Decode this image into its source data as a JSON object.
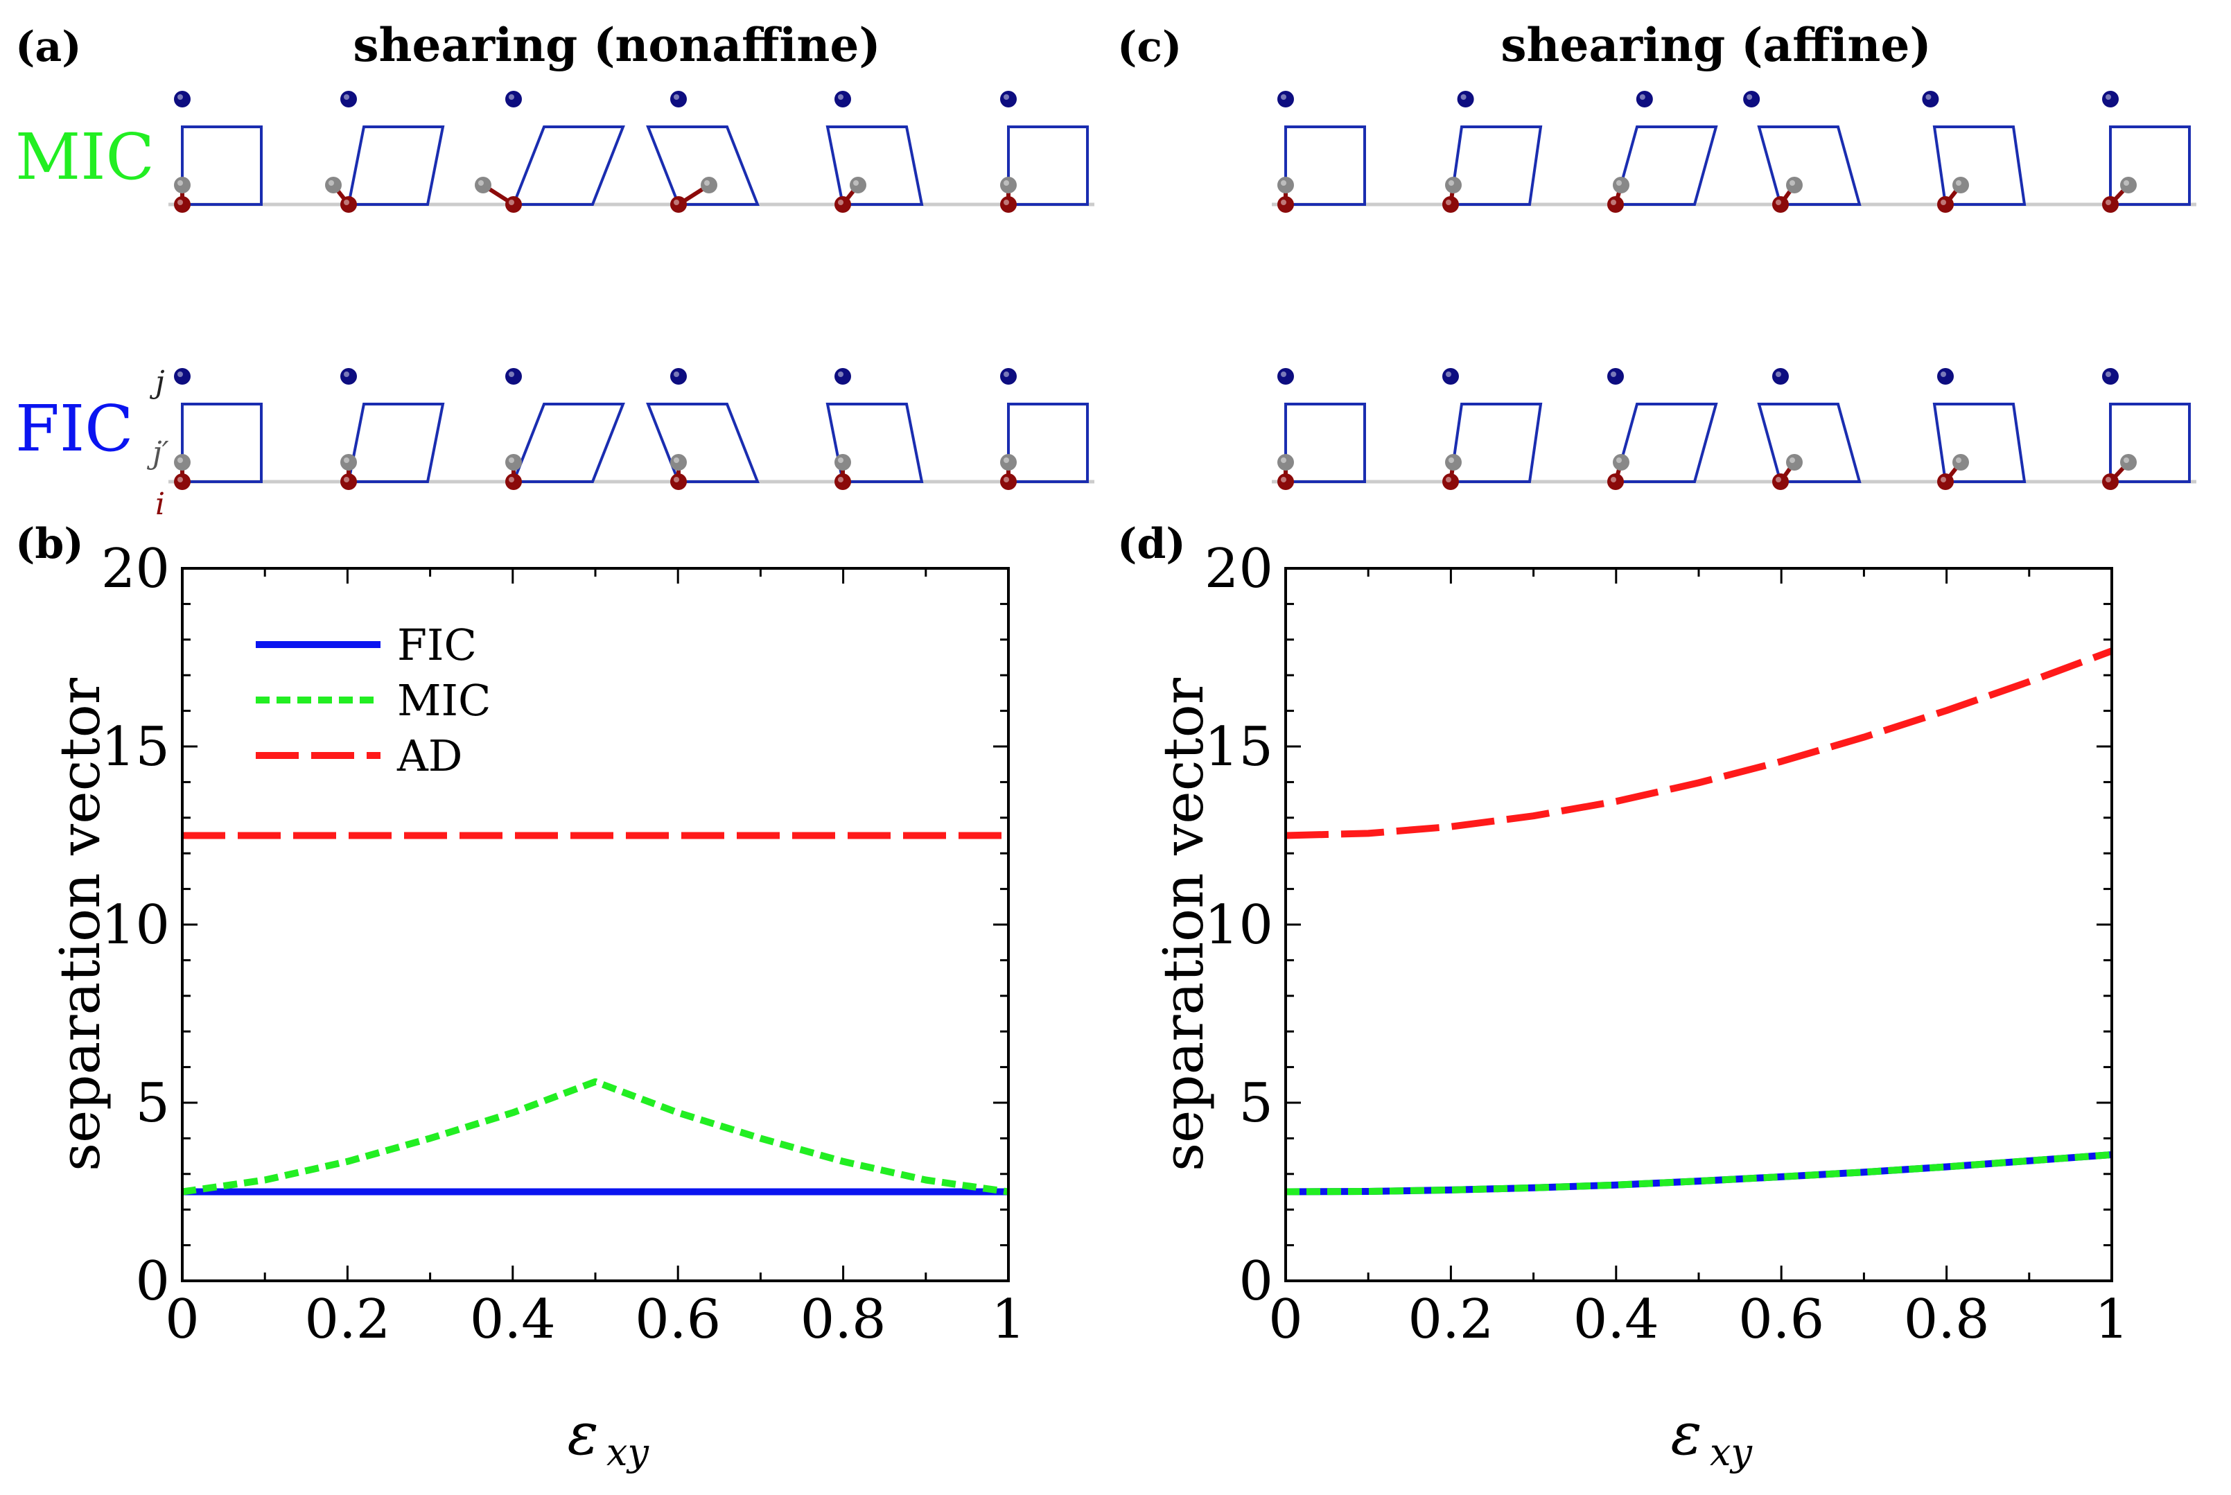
{
  "panel_labels": {
    "a": "(a)",
    "b": "(b)",
    "c": "(c)",
    "d": "(d)"
  },
  "titles": {
    "nonaffine": "shearing (nonaffine)",
    "affine": "shearing (affine)"
  },
  "row_labels": {
    "mic": "MIC",
    "fic": "FIC"
  },
  "atom_labels": {
    "j": "j",
    "jprime": "j′",
    "i": "i"
  },
  "colors": {
    "FIC": "#0a14f0",
    "MIC": "#22ee22",
    "AD": "#ff1a1a",
    "cell": "#1a2db0",
    "atom_i": "#8b0a0a",
    "atom_j": "#0d0d80",
    "atom_jp": "#888888"
  },
  "chart_data": [
    {
      "id": "b",
      "type": "line",
      "xlabel": "ε",
      "xlabel_sub": "xy",
      "ylabel": "separation vector",
      "xlim": [
        0,
        1
      ],
      "ylim": [
        0,
        20
      ],
      "xticks": [
        "0",
        "0.2",
        "0.4",
        "0.6",
        "0.8",
        "1"
      ],
      "yticks": [
        "0",
        "5",
        "10",
        "15",
        "20"
      ],
      "legend": {
        "position": "top-left",
        "entries": [
          "FIC",
          "MIC",
          "AD"
        ]
      },
      "series": [
        {
          "name": "FIC",
          "style": "solid",
          "x": [
            0,
            1
          ],
          "y": [
            2.5,
            2.5
          ]
        },
        {
          "name": "MIC",
          "style": "dotted",
          "x": [
            0,
            0.1,
            0.2,
            0.3,
            0.4,
            0.5,
            0.6,
            0.7,
            0.8,
            0.9,
            1.0
          ],
          "y": [
            2.5,
            2.83,
            3.35,
            4.0,
            4.72,
            5.59,
            4.72,
            4.0,
            3.35,
            2.83,
            2.5
          ]
        },
        {
          "name": "AD",
          "style": "dashed",
          "x": [
            0,
            1
          ],
          "y": [
            12.5,
            12.5
          ]
        }
      ]
    },
    {
      "id": "d",
      "type": "line",
      "xlabel": "ε",
      "xlabel_sub": "xy",
      "ylabel": "separation vector",
      "xlim": [
        0,
        1
      ],
      "ylim": [
        0,
        20
      ],
      "xticks": [
        "0",
        "0.2",
        "0.4",
        "0.6",
        "0.8",
        "1"
      ],
      "yticks": [
        "0",
        "5",
        "10",
        "15",
        "20"
      ],
      "series": [
        {
          "name": "FIC",
          "style": "solid",
          "x": [
            0,
            0.1,
            0.2,
            0.3,
            0.4,
            0.5,
            0.6,
            0.7,
            0.8,
            0.9,
            1.0
          ],
          "y": [
            2.5,
            2.51,
            2.55,
            2.61,
            2.69,
            2.8,
            2.92,
            3.05,
            3.2,
            3.37,
            3.54
          ]
        },
        {
          "name": "MIC",
          "style": "dotted",
          "x": [
            0,
            0.1,
            0.2,
            0.3,
            0.4,
            0.5,
            0.6,
            0.7,
            0.8,
            0.9,
            1.0
          ],
          "y": [
            2.5,
            2.51,
            2.55,
            2.61,
            2.69,
            2.8,
            2.92,
            3.05,
            3.2,
            3.37,
            3.54
          ]
        },
        {
          "name": "AD",
          "style": "dashed",
          "x": [
            0,
            0.1,
            0.2,
            0.3,
            0.4,
            0.5,
            0.6,
            0.7,
            0.8,
            0.9,
            1.0
          ],
          "y": [
            12.5,
            12.56,
            12.75,
            13.05,
            13.46,
            13.98,
            14.58,
            15.26,
            16.01,
            16.82,
            17.68
          ]
        }
      ]
    }
  ]
}
